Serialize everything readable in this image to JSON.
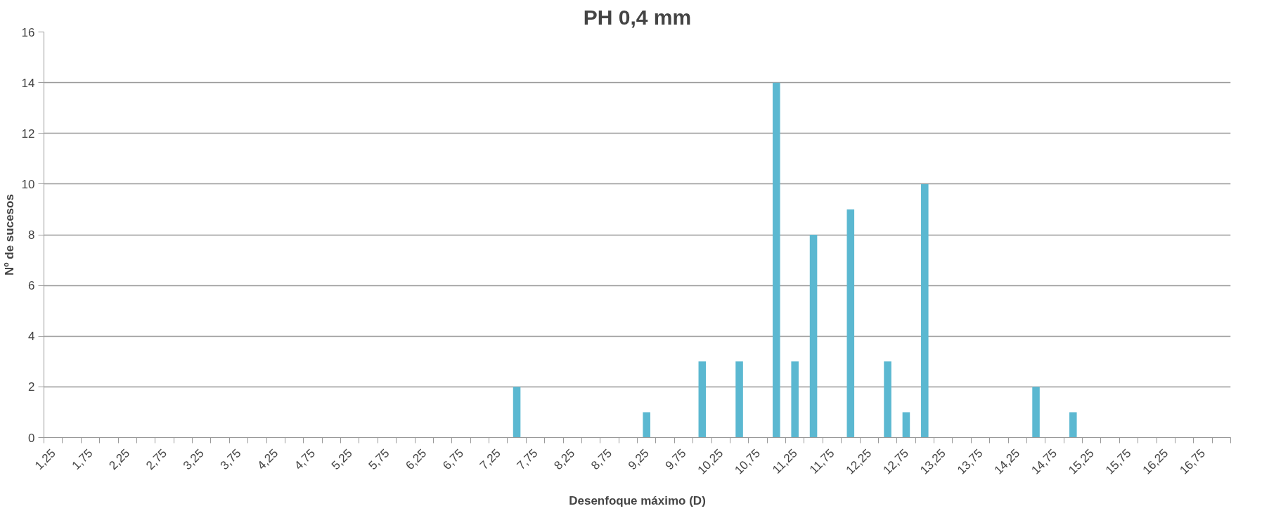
{
  "chart_data": {
    "type": "bar",
    "title": "PH 0,4 mm",
    "xlabel": "Desenfoque máximo (D)",
    "ylabel": "Nº de sucesos",
    "categories": [
      "1,25",
      null,
      "1,75",
      null,
      "2,25",
      null,
      "2,75",
      null,
      "3,25",
      null,
      "3,75",
      null,
      "4,25",
      null,
      "4,75",
      null,
      "5,25",
      null,
      "5,75",
      null,
      "6,25",
      null,
      "6,75",
      null,
      "7,25",
      null,
      "7,75",
      null,
      "8,25",
      null,
      "8,75",
      null,
      "9,25",
      null,
      "9,75",
      null,
      "10,25",
      null,
      "10,75",
      null,
      "11,25",
      null,
      "11,75",
      null,
      "12,25",
      null,
      "12,75",
      null,
      "13,25",
      null,
      "13,75",
      null,
      "14,25",
      null,
      "14,75",
      null,
      "15,25",
      null,
      "15,75",
      null,
      "16,25",
      null,
      "16,75",
      null
    ],
    "values": [
      0,
      0,
      0,
      0,
      0,
      0,
      0,
      0,
      0,
      0,
      0,
      0,
      0,
      0,
      0,
      0,
      0,
      0,
      0,
      0,
      0,
      0,
      0,
      0,
      0,
      2,
      0,
      0,
      0,
      0,
      0,
      0,
      1,
      0,
      0,
      3,
      0,
      3,
      0,
      14,
      3,
      8,
      0,
      9,
      0,
      3,
      1,
      10,
      0,
      0,
      0,
      0,
      0,
      2,
      0,
      1,
      0,
      0,
      0,
      0,
      0,
      0,
      0,
      0
    ],
    "color": "#5bb8d1",
    "ylim": [
      0,
      16
    ],
    "yticks": [
      0,
      2,
      4,
      6,
      8,
      10,
      12,
      14,
      16
    ],
    "grid": "y"
  }
}
